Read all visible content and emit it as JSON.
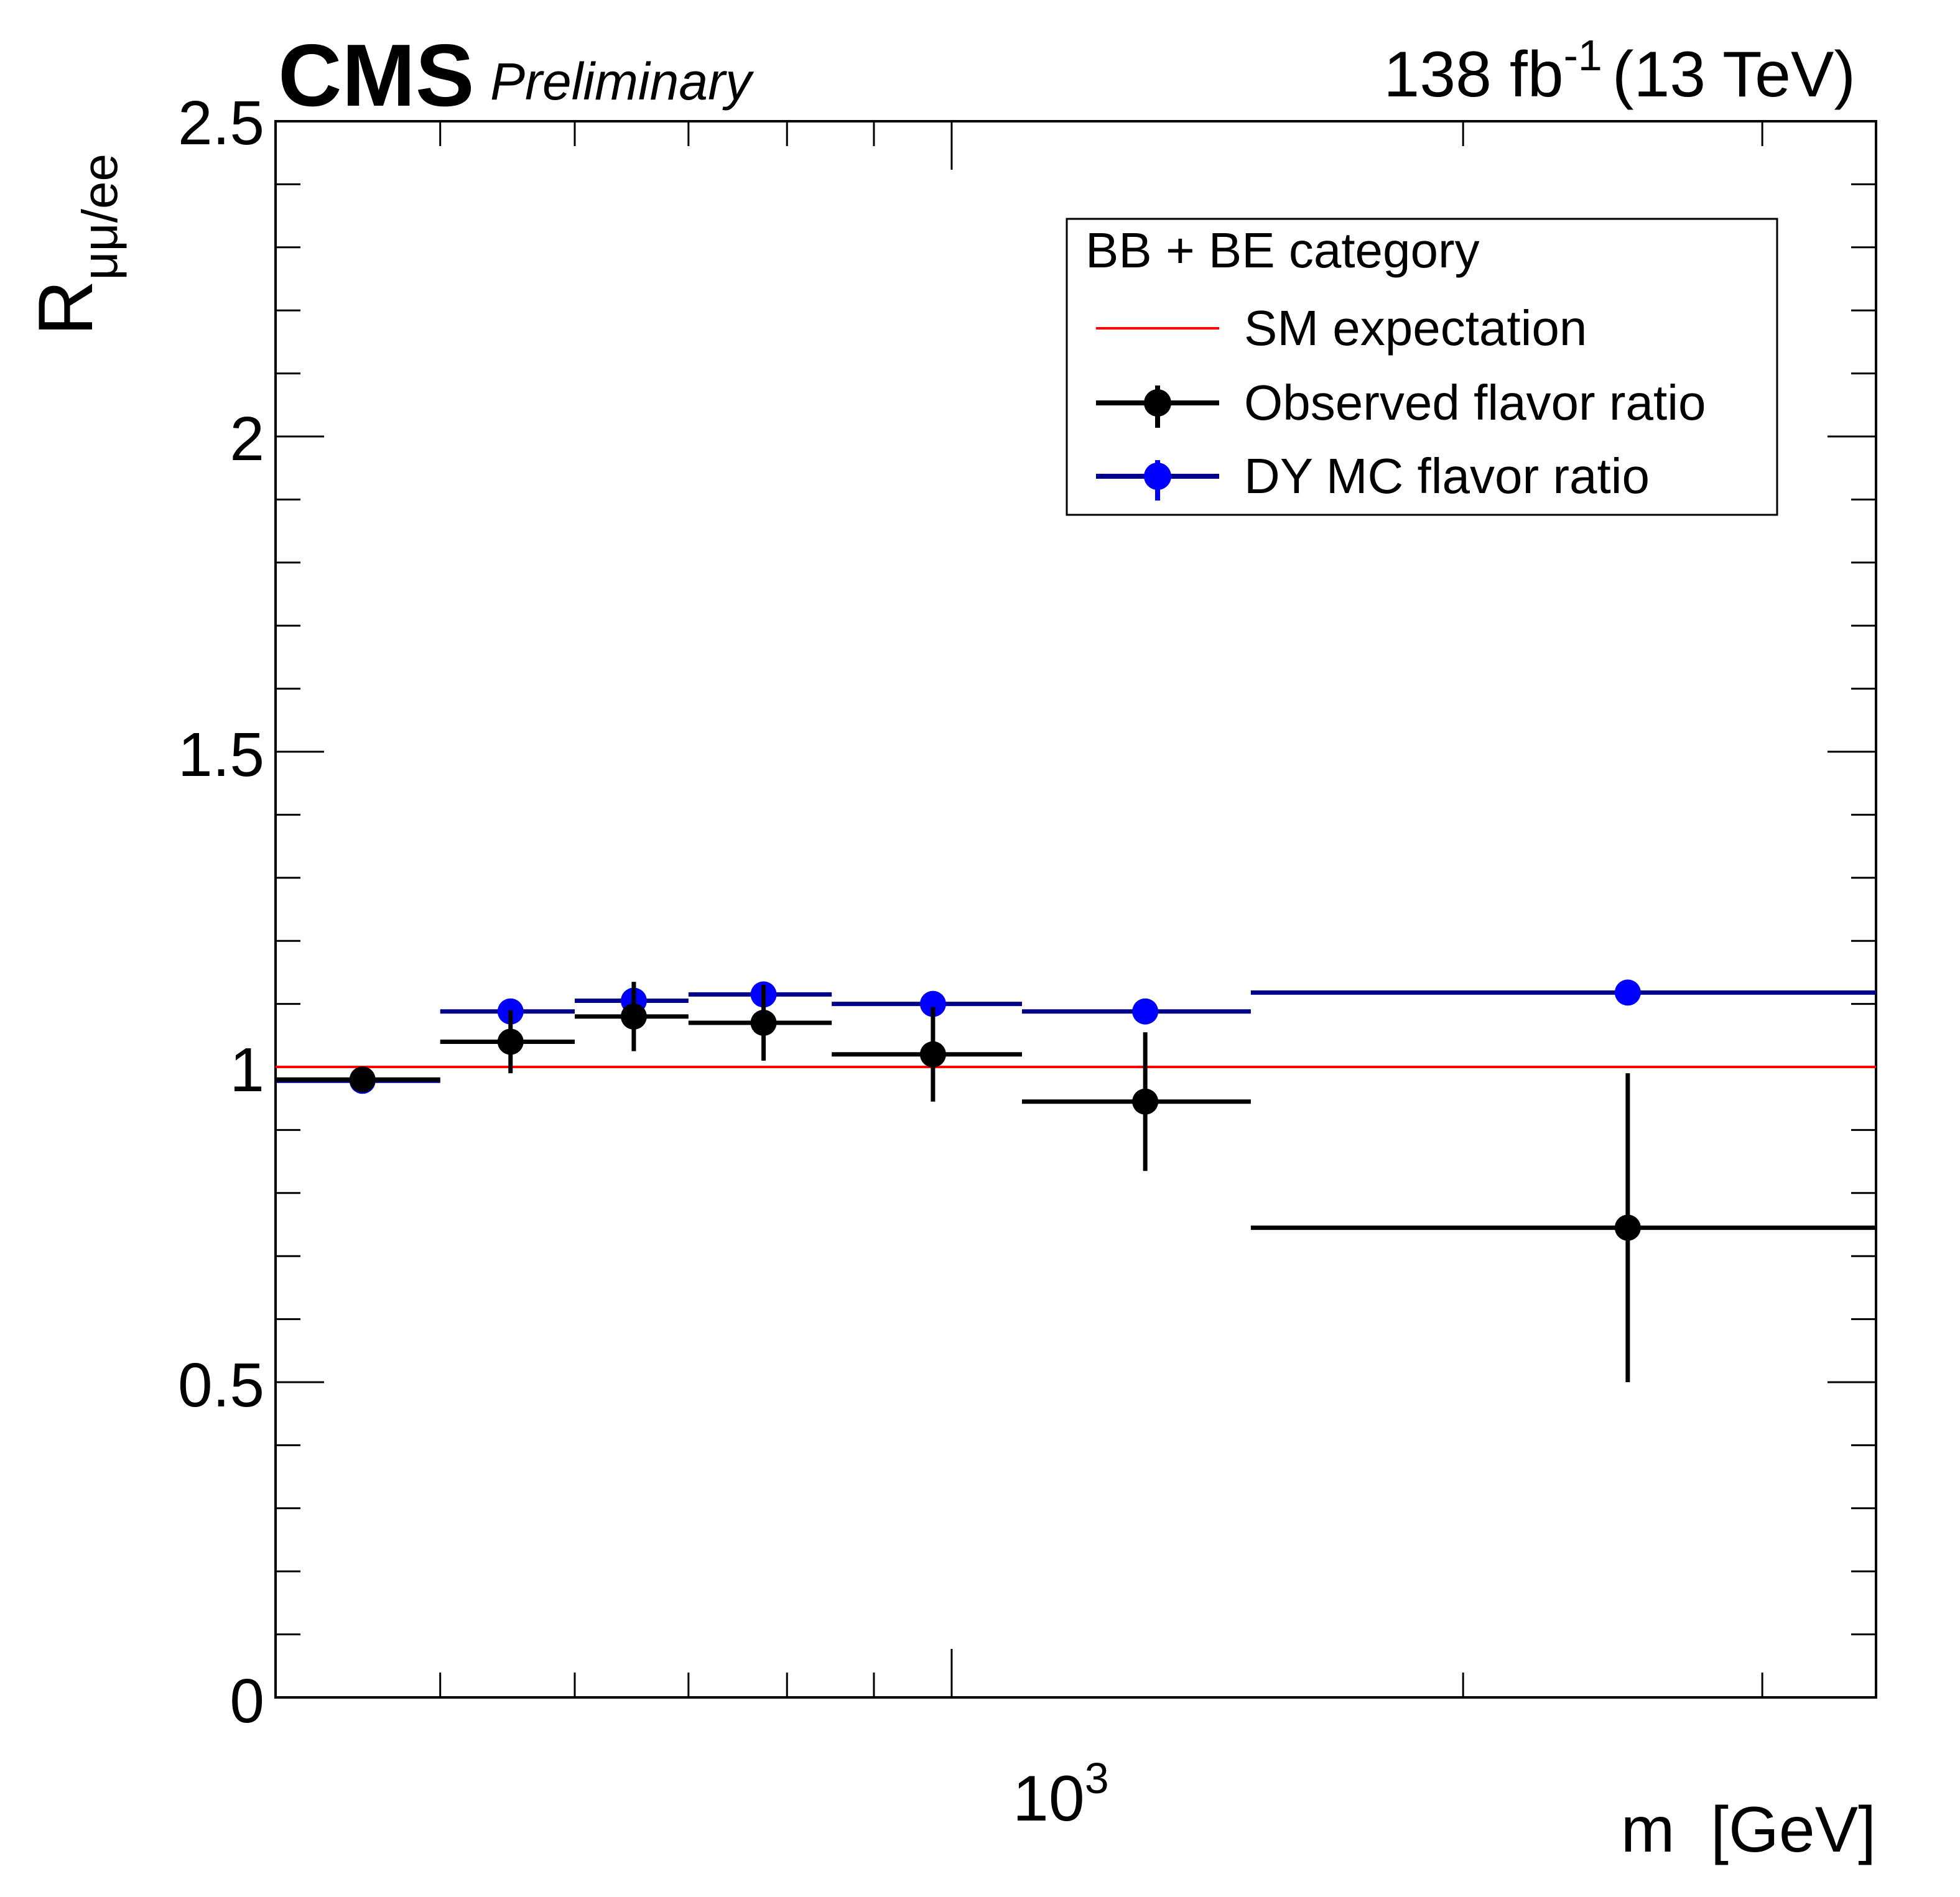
{
  "header": {
    "experiment": "CMS",
    "status": "Preliminary",
    "lumi_value": "138 fb",
    "lumi_exponent": "-1",
    "energy": "(13 TeV)"
  },
  "legend": {
    "title": "BB + BE category",
    "entries": [
      "SM expectation",
      "Observed flavor ratio",
      "DY MC flavor ratio"
    ]
  },
  "axes": {
    "y_label_main": "R",
    "y_label_sub": "μμ/ee",
    "x_label": "m  [GeV]",
    "x_tick_base": "10",
    "x_tick_exponent": "3",
    "y_ticks": [
      "0",
      "0.5",
      "1",
      "1.5",
      "2",
      "2.5"
    ]
  },
  "colors": {
    "observed": "#000000",
    "dy_mc": "#0000ff",
    "dy_mc_line": "#00008b",
    "sm": "#ff0000"
  },
  "chart_data": {
    "type": "scatter",
    "title": "",
    "xlabel": "m [GeV]",
    "ylabel": "R_{μμ/ee}",
    "xscale": "log",
    "xlim": [
      400,
      3500
    ],
    "ylim": [
      0,
      2.5
    ],
    "legend_position": "top-right",
    "sm_expectation": 1.0,
    "bins": [
      [
        400,
        500
      ],
      [
        500,
        600
      ],
      [
        600,
        700
      ],
      [
        700,
        850
      ],
      [
        850,
        1100
      ],
      [
        1100,
        1500
      ],
      [
        1500,
        3500
      ]
    ],
    "series": [
      {
        "name": "Observed flavor ratio",
        "x": [
          450,
          550,
          650,
          775,
          975,
          1300,
          2500
        ],
        "values": [
          0.98,
          1.04,
          1.08,
          1.07,
          1.02,
          0.945,
          0.745
        ],
        "err_low": [
          0.02,
          0.05,
          0.055,
          0.06,
          0.075,
          0.11,
          0.245
        ],
        "err_high": [
          0.02,
          0.05,
          0.055,
          0.06,
          0.075,
          0.11,
          0.245
        ]
      },
      {
        "name": "DY MC flavor ratio",
        "x": [
          450,
          550,
          650,
          775,
          975,
          1300,
          2500
        ],
        "values": [
          0.978,
          1.088,
          1.105,
          1.115,
          1.1,
          1.088,
          1.118
        ],
        "err_low": [
          0.005,
          0.006,
          0.006,
          0.006,
          0.007,
          0.007,
          0.008
        ],
        "err_high": [
          0.005,
          0.006,
          0.006,
          0.006,
          0.007,
          0.007,
          0.008
        ]
      }
    ]
  }
}
